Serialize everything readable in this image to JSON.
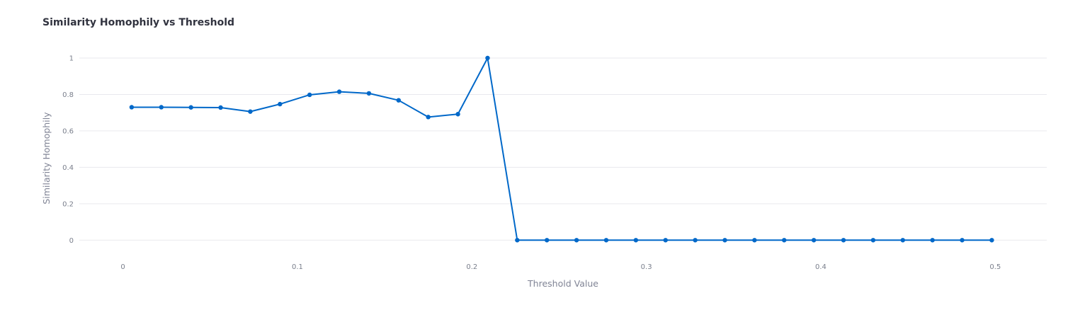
{
  "chart": {
    "title": "Similarity Homophily vs Threshold"
  },
  "chart_data": {
    "type": "line",
    "title": "Similarity Homophily vs Threshold",
    "xlabel": "Threshold Value",
    "ylabel": "Similarity Homophily",
    "xlim": [
      -0.025,
      0.5295
    ],
    "ylim": [
      -0.1,
      1.0
    ],
    "x_ticks": [
      0,
      0.1,
      0.2,
      0.3,
      0.4,
      0.5
    ],
    "x_tick_labels": [
      "0",
      "0.1",
      "0.2",
      "0.3",
      "0.4",
      "0.5"
    ],
    "y_ticks": [
      0,
      0.2,
      0.4,
      0.6,
      0.8,
      1
    ],
    "y_tick_labels": [
      "0",
      "0.2",
      "0.4",
      "0.6",
      "0.8",
      "1"
    ],
    "grid": "horizontal",
    "line_color": "#0068c9",
    "series": [
      {
        "x": [
          0.005,
          0.022,
          0.039,
          0.056,
          0.073,
          0.09,
          0.107,
          0.124,
          0.141,
          0.158,
          0.175,
          0.192,
          0.209,
          0.226,
          0.243,
          0.26,
          0.277,
          0.294,
          0.311,
          0.328,
          0.345,
          0.362,
          0.379,
          0.396,
          0.413,
          0.43,
          0.447,
          0.464,
          0.481,
          0.498
        ],
        "y": [
          0.73,
          0.73,
          0.729,
          0.728,
          0.706,
          0.747,
          0.798,
          0.815,
          0.806,
          0.768,
          0.676,
          0.692,
          1.0,
          0,
          0,
          0,
          0,
          0,
          0,
          0,
          0,
          0,
          0,
          0,
          0,
          0,
          0,
          0,
          0,
          0
        ]
      }
    ]
  }
}
